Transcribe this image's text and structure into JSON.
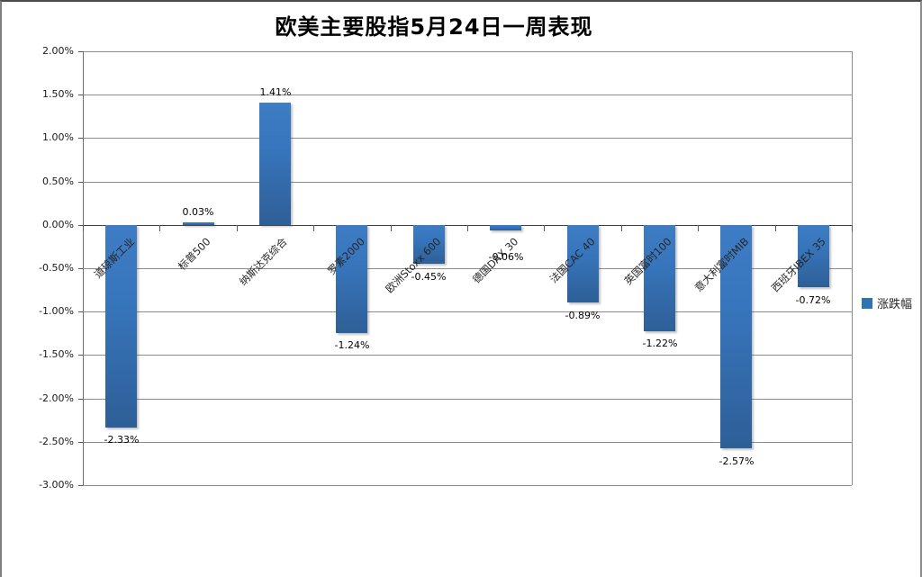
{
  "chart_data": {
    "type": "bar",
    "title": "欧美主要股指5月24日一周表现",
    "categories": [
      "道琼斯工业",
      "标普500",
      "纳斯达克综合",
      "罗素2000",
      "欧洲Stoxx 600",
      "德国DAX 30",
      "法国CAC 40",
      "英国富时100",
      "意大利富时MIB",
      "西班牙IBEX 35"
    ],
    "series": [
      {
        "name": "涨跌幅",
        "values": [
          -2.33,
          0.03,
          1.41,
          -1.24,
          -0.45,
          -0.06,
          -0.89,
          -1.22,
          -2.57,
          -0.72
        ]
      }
    ],
    "value_labels": [
      "-2.33%",
      "0.03%",
      "1.41%",
      "-1.24%",
      "-0.45%",
      "-0.06%",
      "-0.89%",
      "-1.22%",
      "-2.57%",
      "-0.72%"
    ],
    "xlabel": "",
    "ylabel": "",
    "ylim": [
      -3,
      2
    ],
    "ytick_step": 0.5,
    "y_tick_labels": [
      "2.00%",
      "1.50%",
      "1.00%",
      "0.50%",
      "0.00%",
      "-0.50%",
      "-1.00%",
      "-1.50%",
      "-2.00%",
      "-2.50%",
      "-3.00%"
    ],
    "grid": true,
    "legend_position": "right",
    "colors": {
      "bar_gradient_top": "#3e7cc4",
      "bar_gradient_bottom": "#2e5f97",
      "legend_swatch": "#2e73b3",
      "gridline": "#8c8c8c",
      "zero_line": "#404040",
      "axis_text": "#262626"
    }
  }
}
